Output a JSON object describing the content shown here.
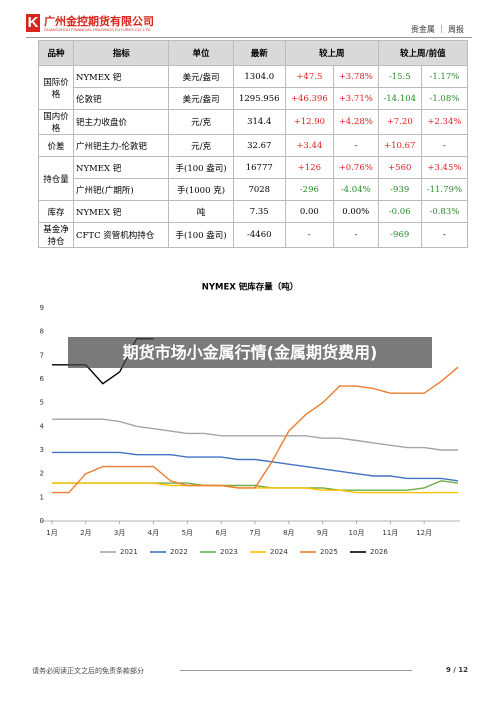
{
  "header": {
    "company": "广州金控期货有限公司",
    "company_en": "GUANGZHOU FINANCIAL HOLDINGS FUTURES CO.,LTD",
    "section": "贵金属 ｜ 周报"
  },
  "table": {
    "header": [
      "品种",
      "指标",
      "单位",
      "最新",
      "较上周",
      "较上周/前值"
    ],
    "groups": [
      {
        "label": "国际价格",
        "rows": [
          [
            "NYMEX 钯",
            "美元/盎司",
            "1304.0",
            "+47.5",
            "+3.78%",
            "-15.5",
            "-1.17%"
          ],
          [
            "伦敦钯",
            "美元/盎司",
            "1295.956",
            "+46.396",
            "+3.71%",
            "-14.104",
            "-1.08%"
          ]
        ]
      },
      {
        "label": "国内价格",
        "rows": [
          [
            "钯主力收盘价",
            "元/克",
            "314.4",
            "+12.90",
            "+4.28%",
            "+7.20",
            "+2.34%"
          ]
        ]
      },
      {
        "label": "价差",
        "rows": [
          [
            "广州钯主力-伦敦钯",
            "元/克",
            "32.67",
            "+3.44",
            "-",
            "+10.67",
            "-"
          ]
        ]
      },
      {
        "label": "持仓量",
        "rows": [
          [
            "NYMEX 钯",
            "手(100 盎司)",
            "16777",
            "+126",
            "+0.76%",
            "+560",
            "+3.45%"
          ],
          [
            "广州钯(广期所)",
            "手(1000 克)",
            "7028",
            "-296",
            "-4.04%",
            "-939",
            "-11.79%"
          ]
        ]
      },
      {
        "label": "库存",
        "rows": [
          [
            "NYMEX 钯",
            "吨",
            "7.35",
            "0.00",
            "0.00%",
            "-0.06",
            "-0.83%"
          ]
        ]
      },
      {
        "label": "基金净持仓",
        "rows": [
          [
            "CFTC 资管机构持仓",
            "手(100 盎司)",
            "-4460",
            "-",
            "-",
            "-969",
            "-"
          ]
        ]
      }
    ]
  },
  "chart_data": {
    "type": "line",
    "title": "NYMEX 钯库存量（吨）",
    "x": [
      1,
      1.5,
      2,
      2.5,
      3,
      3.5,
      4,
      4.5,
      5,
      5.5,
      6,
      6.5,
      7,
      7.5,
      8,
      8.5,
      9,
      9.5,
      10,
      10.5,
      11,
      11.5,
      12,
      12.5,
      13
    ],
    "xlim": [
      1,
      13
    ],
    "xticks": [
      {
        "value": 1,
        "label": "1月"
      },
      {
        "value": 2,
        "label": "2月"
      },
      {
        "value": 3,
        "label": "3月"
      },
      {
        "value": 4,
        "label": "4月"
      },
      {
        "value": 5,
        "label": "5月"
      },
      {
        "value": 6,
        "label": "6月"
      },
      {
        "value": 7,
        "label": "7月"
      },
      {
        "value": 8,
        "label": "8月"
      },
      {
        "value": 9,
        "label": "9月"
      },
      {
        "value": 10,
        "label": "10月"
      },
      {
        "value": 11,
        "label": "11月"
      },
      {
        "value": 12,
        "label": "12月"
      }
    ],
    "ylim": [
      0,
      9
    ],
    "yticks": [
      0,
      1,
      2,
      3,
      4,
      5,
      6,
      7,
      8,
      9
    ],
    "series": [
      {
        "name": "2021",
        "color": "#a5a5a5",
        "values": [
          4.3,
          4.3,
          4.3,
          4.3,
          4.2,
          4.0,
          3.9,
          3.8,
          3.7,
          3.7,
          3.6,
          3.6,
          3.6,
          3.6,
          3.6,
          3.6,
          3.5,
          3.5,
          3.4,
          3.3,
          3.2,
          3.1,
          3.1,
          3.0,
          3.0
        ]
      },
      {
        "name": "2022",
        "color": "#4472c4",
        "values": [
          2.9,
          2.9,
          2.9,
          2.9,
          2.9,
          2.8,
          2.8,
          2.8,
          2.7,
          2.7,
          2.7,
          2.6,
          2.6,
          2.5,
          2.4,
          2.3,
          2.2,
          2.1,
          2.0,
          1.9,
          1.9,
          1.8,
          1.8,
          1.8,
          1.7
        ]
      },
      {
        "name": "2023",
        "color": "#70ad47",
        "values": [
          1.6,
          1.6,
          1.6,
          1.6,
          1.6,
          1.6,
          1.6,
          1.6,
          1.6,
          1.5,
          1.5,
          1.5,
          1.5,
          1.4,
          1.4,
          1.4,
          1.4,
          1.3,
          1.3,
          1.3,
          1.3,
          1.3,
          1.4,
          1.7,
          1.6
        ]
      },
      {
        "name": "2024",
        "color": "#ffc000",
        "values": [
          1.6,
          1.6,
          1.6,
          1.6,
          1.6,
          1.6,
          1.6,
          1.5,
          1.5,
          1.5,
          1.5,
          1.4,
          1.4,
          1.4,
          1.4,
          1.4,
          1.3,
          1.3,
          1.2,
          1.2,
          1.2,
          1.2,
          1.2,
          1.2,
          1.2
        ]
      },
      {
        "name": "2025",
        "color": "#ed7d31",
        "values": [
          1.2,
          1.2,
          2.0,
          2.3,
          2.3,
          2.3,
          2.3,
          1.7,
          1.5,
          1.5,
          1.5,
          1.4,
          1.4,
          2.5,
          3.8,
          4.5,
          5.0,
          5.7,
          5.7,
          5.6,
          5.4,
          5.4,
          5.4,
          5.9,
          6.5
        ]
      },
      {
        "name": "2026",
        "color": "#000000",
        "values": [
          6.6,
          6.6,
          6.6,
          5.8,
          6.3,
          7.7,
          7.7,
          null,
          null,
          null,
          null,
          null,
          null,
          null,
          null,
          null,
          null,
          null,
          null,
          null,
          null,
          null,
          null,
          null,
          null
        ]
      }
    ]
  },
  "watermark": "期货市场小金属行情(金属期货费用)",
  "footer": {
    "disclaimer": "请务必阅读正文之后的免责条款部分",
    "page": "9 / 12"
  }
}
